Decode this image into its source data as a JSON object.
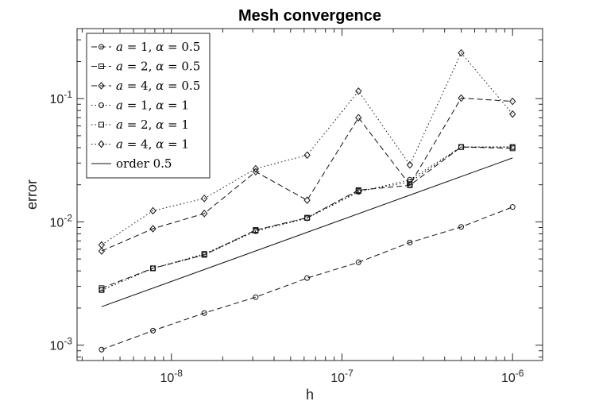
{
  "chart_data": {
    "type": "line",
    "title": "Mesh convergence",
    "xlabel": "h",
    "ylabel": "error",
    "xscale": "log",
    "yscale": "log",
    "xlim": [
      2.8e-09,
      1.5e-06
    ],
    "ylim": [
      0.00075,
      0.37
    ],
    "x_ticks": [
      1e-08,
      1e-07,
      1e-06
    ],
    "x_tick_labels": [
      {
        "base": "10",
        "exp": "-8"
      },
      {
        "base": "10",
        "exp": "-7"
      },
      {
        "base": "10",
        "exp": "-6"
      }
    ],
    "y_ticks": [
      0.001,
      0.01,
      0.1
    ],
    "y_tick_labels": [
      {
        "base": "10",
        "exp": "-3"
      },
      {
        "base": "10",
        "exp": "-2"
      },
      {
        "base": "10",
        "exp": "-1"
      }
    ],
    "grid": false,
    "legend_position": "top-left",
    "x": [
      3.9e-09,
      7.8e-09,
      1.56e-08,
      3.12e-08,
      6.25e-08,
      1.25e-07,
      2.5e-07,
      5e-07,
      1e-06
    ],
    "series": [
      {
        "name": "a = 1, α = 0.5",
        "marker": "circle",
        "dash": "dashed",
        "values": [
          0.00092,
          0.00131,
          0.00182,
          0.00245,
          0.0035,
          0.0047,
          0.0068,
          0.0091,
          0.0132
        ]
      },
      {
        "name": "a = 2, α = 0.5",
        "marker": "square",
        "dash": "dashed",
        "values": [
          0.0029,
          0.0042,
          0.0054,
          0.0086,
          0.0108,
          0.0181,
          0.0198,
          0.0405,
          0.0395
        ]
      },
      {
        "name": "a = 4, α = 0.5",
        "marker": "diamond",
        "dash": "dashed",
        "values": [
          0.0058,
          0.0088,
          0.0117,
          0.0255,
          0.015,
          0.07,
          0.02,
          0.101,
          0.095
        ]
      },
      {
        "name": "a = 1, α = 1",
        "marker": "circle",
        "dash": "dotted",
        "values": [
          0.0028,
          0.0042,
          0.0054,
          0.0084,
          0.0107,
          0.0175,
          0.022,
          0.0405,
          0.0405
        ]
      },
      {
        "name": "a = 2, α = 1",
        "marker": "square",
        "dash": "dotted",
        "values": [
          0.0028,
          0.0042,
          0.0055,
          0.0085,
          0.0108,
          0.0178,
          0.021,
          0.0405,
          0.0405
        ]
      },
      {
        "name": "a = 4, α = 1",
        "marker": "diamond",
        "dash": "dotted",
        "values": [
          0.0065,
          0.0123,
          0.0155,
          0.027,
          0.0348,
          0.115,
          0.029,
          0.235,
          0.075
        ]
      },
      {
        "name": "order 0.5",
        "marker": "none",
        "dash": "solid",
        "values": [
          0.00205,
          null,
          null,
          null,
          null,
          null,
          null,
          null,
          0.033
        ]
      }
    ],
    "legend_entries": [
      {
        "a": "1",
        "alpha": "0.5"
      },
      {
        "a": "2",
        "alpha": "0.5"
      },
      {
        "a": "4",
        "alpha": "0.5"
      },
      {
        "a": "1",
        "alpha": "1"
      },
      {
        "a": "2",
        "alpha": "1"
      },
      {
        "a": "4",
        "alpha": "1"
      },
      {
        "text": "order 0.5"
      }
    ]
  }
}
